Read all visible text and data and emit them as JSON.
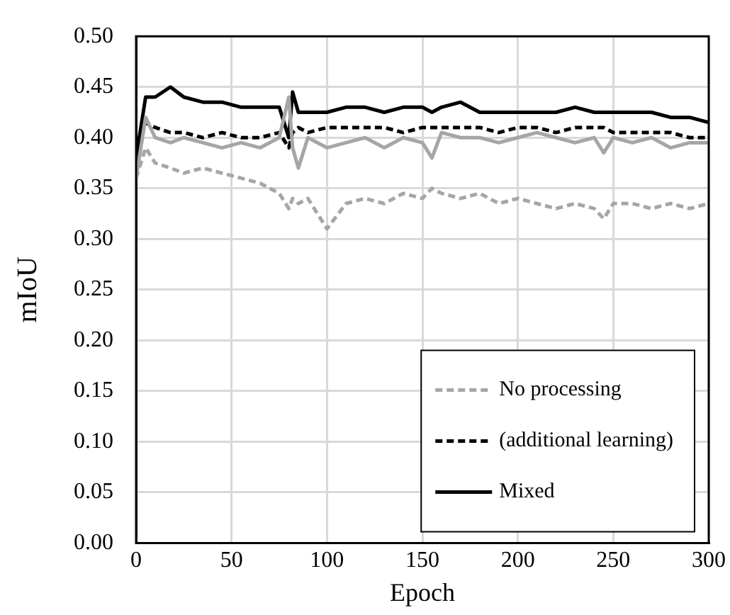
{
  "chart_data": {
    "type": "line",
    "xlabel": "Epoch",
    "ylabel": "mIoU",
    "marker": "none",
    "grid": true,
    "legend": "bottom right",
    "xlim": [
      0,
      300
    ],
    "xticks": [
      0,
      50,
      100,
      150,
      200,
      250,
      300
    ],
    "ylim": [
      0,
      0.5
    ],
    "yticks": [
      {
        "value": 0,
        "label": "0.00"
      },
      {
        "value": 0.05,
        "label": "0.05"
      },
      {
        "value": 0.1,
        "label": "0.10"
      },
      {
        "value": 0.15,
        "label": "0.15"
      },
      {
        "value": 0.2,
        "label": "0.20"
      },
      {
        "value": 0.25,
        "label": "0.25"
      },
      {
        "value": 0.3,
        "label": "0.30"
      },
      {
        "value": 0.35,
        "label": "0.35"
      },
      {
        "value": 0.4,
        "label": "0.40"
      },
      {
        "value": 0.45,
        "label": "0.45"
      },
      {
        "value": 0.5,
        "label": "0.50"
      }
    ],
    "x": [
      0,
      5,
      10,
      18,
      25,
      35,
      45,
      55,
      65,
      75,
      80,
      82,
      85,
      90,
      100,
      110,
      120,
      130,
      140,
      150,
      155,
      160,
      170,
      180,
      190,
      200,
      210,
      220,
      230,
      240,
      245,
      250,
      260,
      270,
      280,
      290,
      300
    ],
    "series": [
      {
        "name": "No processing",
        "color": "#a6a6a6",
        "line_style": "dashed",
        "values": [
          0.36,
          0.39,
          0.375,
          0.37,
          0.365,
          0.37,
          0.365,
          0.36,
          0.355,
          0.345,
          0.33,
          0.34,
          0.335,
          0.34,
          0.31,
          0.335,
          0.34,
          0.335,
          0.345,
          0.34,
          0.35,
          0.345,
          0.34,
          0.345,
          0.335,
          0.34,
          0.335,
          0.33,
          0.335,
          0.33,
          0.32,
          0.335,
          0.335,
          0.33,
          0.335,
          0.33,
          0.335
        ]
      },
      {
        "color": "#a6a6a6",
        "line_style": "solid",
        "values": [
          0.36,
          0.42,
          0.4,
          0.395,
          0.4,
          0.395,
          0.39,
          0.395,
          0.39,
          0.4,
          0.44,
          0.39,
          0.37,
          0.4,
          0.39,
          0.395,
          0.4,
          0.39,
          0.4,
          0.395,
          0.38,
          0.405,
          0.4,
          0.4,
          0.395,
          0.4,
          0.405,
          0.4,
          0.395,
          0.4,
          0.385,
          0.4,
          0.395,
          0.4,
          0.39,
          0.395,
          0.395
        ]
      },
      {
        "name": "(additional learning)",
        "color": "#000000",
        "line_style": "dashed",
        "values": [
          0.38,
          0.415,
          0.41,
          0.405,
          0.405,
          0.4,
          0.405,
          0.4,
          0.4,
          0.405,
          0.39,
          0.405,
          0.41,
          0.405,
          0.41,
          0.41,
          0.41,
          0.41,
          0.405,
          0.41,
          0.41,
          0.41,
          0.41,
          0.41,
          0.405,
          0.41,
          0.41,
          0.405,
          0.41,
          0.41,
          0.41,
          0.405,
          0.405,
          0.405,
          0.405,
          0.4,
          0.4
        ]
      },
      {
        "name": "Mixed",
        "color": "#000000",
        "line_style": "solid",
        "values": [
          0.38,
          0.44,
          0.44,
          0.45,
          0.44,
          0.435,
          0.435,
          0.43,
          0.43,
          0.43,
          0.4,
          0.445,
          0.425,
          0.425,
          0.425,
          0.43,
          0.43,
          0.425,
          0.43,
          0.43,
          0.425,
          0.43,
          0.435,
          0.425,
          0.425,
          0.425,
          0.425,
          0.425,
          0.43,
          0.425,
          0.425,
          0.425,
          0.425,
          0.425,
          0.42,
          0.42,
          0.415
        ]
      }
    ]
  }
}
